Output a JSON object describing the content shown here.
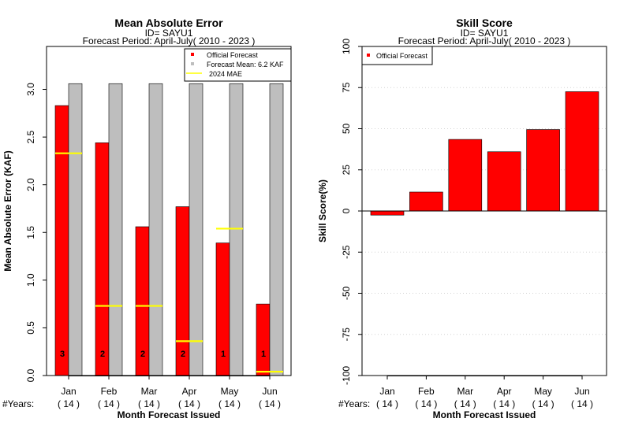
{
  "chart_data": [
    {
      "type": "bar",
      "title": "Mean Absolute Error",
      "subtitle_id": "ID= SAYU1",
      "subtitle_period": "Forecast Period: April-July( 2010 - 2023 )",
      "ylabel": "Mean Absolute Error (KAF)",
      "xlabel": "Month Forecast Issued",
      "ylim": [
        0,
        3.45
      ],
      "yticks": [
        "0.0",
        "0.5",
        "1.0",
        "1.5",
        "2.0",
        "2.5",
        "3.0"
      ],
      "categories": [
        "Jan",
        "Feb",
        "Mar",
        "Apr",
        "May",
        "Jun"
      ],
      "years_label": "#Years:",
      "years": [
        "( 14 )",
        "( 14 )",
        "( 14 )",
        "( 14 )",
        "( 14 )",
        "( 14 )"
      ],
      "series": [
        {
          "name": "Official Forecast",
          "color": "#ff0000",
          "values": [
            2.83,
            2.44,
            1.56,
            1.77,
            1.39,
            0.75
          ]
        },
        {
          "name": "Forecast Mean: 6.2 KAF",
          "color": "#bebebe",
          "values": [
            3.06,
            3.06,
            3.06,
            3.06,
            3.06,
            3.06
          ]
        }
      ],
      "mae_2024": {
        "name": "2024  MAE",
        "color": "#ffff00",
        "values": [
          2.33,
          0.73,
          0.73,
          0.36,
          1.54,
          0.04
        ]
      },
      "bar_counts": [
        "3",
        "2",
        "2",
        "2",
        "1",
        "1"
      ],
      "legend_position": "top-right"
    },
    {
      "type": "bar",
      "title": "Skill Score",
      "subtitle_id": "ID= SAYU1",
      "subtitle_period": "Forecast Period: April-July( 2010 - 2023 )",
      "ylabel": "Skill Score(%)",
      "xlabel": "Month Forecast Issued",
      "ylim": [
        -100,
        100
      ],
      "yticks": [
        "-100",
        "-75",
        "-50",
        "-25",
        "0",
        "25",
        "50",
        "75",
        "100"
      ],
      "categories": [
        "Jan",
        "Feb",
        "Mar",
        "Apr",
        "May",
        "Jun"
      ],
      "years_label": "#Years:",
      "years": [
        "( 14 )",
        "( 14 )",
        "( 14 )",
        "( 14 )",
        "( 14 )",
        "( 14 )"
      ],
      "series": [
        {
          "name": "Official Forecast",
          "color": "#ff0000",
          "values": [
            -2.5,
            11.5,
            43.5,
            36,
            49.5,
            72.5
          ]
        }
      ],
      "grid": true,
      "legend_position": "top-left"
    }
  ]
}
